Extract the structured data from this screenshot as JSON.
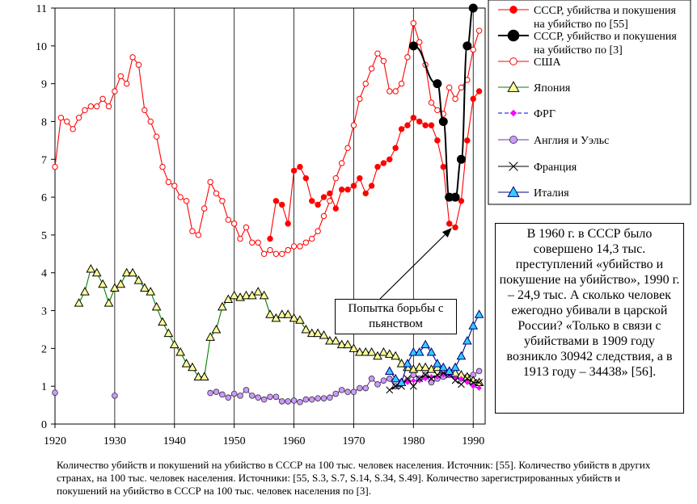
{
  "chart_data": {
    "type": "line",
    "xlim": [
      1920,
      1992
    ],
    "ylim": [
      0,
      11
    ],
    "xticks": [
      1920,
      1930,
      1940,
      1950,
      1960,
      1970,
      1980,
      1990
    ],
    "yticks": [
      0,
      1,
      2,
      3,
      4,
      5,
      6,
      7,
      8,
      9,
      10,
      11
    ],
    "grid": "vertical",
    "legend_position": "top-right",
    "series": [
      {
        "name": "СССР, убийства и покушения на убийство по [55]",
        "color": "#ff0000",
        "marker": "filled-circle",
        "x": [
          1956,
          1957,
          1958,
          1959,
          1960,
          1961,
          1962,
          1963,
          1964,
          1965,
          1966,
          1967,
          1968,
          1969,
          1970,
          1971,
          1972,
          1973,
          1974,
          1975,
          1976,
          1977,
          1978,
          1979,
          1980,
          1981,
          1982,
          1983,
          1984,
          1985,
          1986,
          1987,
          1988,
          1989,
          1990,
          1991
        ],
        "y": [
          4.9,
          5.9,
          5.8,
          5.3,
          6.7,
          6.8,
          6.5,
          5.9,
          5.8,
          6.0,
          6.1,
          5.7,
          6.2,
          6.2,
          6.3,
          6.5,
          6.1,
          6.3,
          6.8,
          6.9,
          7.0,
          7.3,
          7.8,
          7.9,
          8.1,
          8.0,
          7.9,
          7.9,
          7.5,
          6.8,
          5.3,
          5.2,
          5.9,
          7.5,
          8.6,
          8.8
        ]
      },
      {
        "name": "СССР, убийство и покушения на убийство по [3]",
        "color": "#000000",
        "marker": "filled-circle-large",
        "x": [
          1980,
          1984,
          1985,
          1986,
          1987,
          1988,
          1989,
          1990
        ],
        "y": [
          10.0,
          9.0,
          8.0,
          6.0,
          6.0,
          7.0,
          10.0,
          11.0
        ]
      },
      {
        "name": "США",
        "color": "#ff0000",
        "marker": "open-circle",
        "x": [
          1920,
          1921,
          1922,
          1923,
          1924,
          1925,
          1926,
          1927,
          1928,
          1929,
          1930,
          1931,
          1932,
          1933,
          1934,
          1935,
          1936,
          1937,
          1938,
          1939,
          1940,
          1941,
          1942,
          1943,
          1944,
          1945,
          1946,
          1947,
          1948,
          1949,
          1950,
          1951,
          1952,
          1953,
          1954,
          1955,
          1956,
          1957,
          1958,
          1959,
          1960,
          1961,
          1962,
          1963,
          1964,
          1965,
          1966,
          1967,
          1968,
          1969,
          1970,
          1971,
          1972,
          1973,
          1974,
          1975,
          1976,
          1977,
          1978,
          1979,
          1980,
          1981,
          1982,
          1983,
          1984,
          1985,
          1986,
          1987,
          1988,
          1989,
          1990,
          1991
        ],
        "y": [
          6.8,
          8.1,
          8.0,
          7.8,
          8.1,
          8.3,
          8.4,
          8.4,
          8.6,
          8.4,
          8.8,
          9.2,
          9.0,
          9.7,
          9.5,
          8.3,
          8.0,
          7.6,
          6.8,
          6.4,
          6.3,
          6.0,
          5.9,
          5.1,
          5.0,
          5.7,
          6.4,
          6.1,
          5.9,
          5.4,
          5.3,
          4.9,
          5.2,
          4.8,
          4.8,
          4.5,
          4.6,
          4.5,
          4.5,
          4.6,
          4.7,
          4.7,
          4.8,
          4.9,
          5.1,
          5.5,
          5.9,
          6.5,
          6.9,
          7.3,
          7.9,
          8.6,
          9.0,
          9.4,
          9.8,
          9.6,
          8.8,
          8.8,
          9.0,
          9.7,
          10.6,
          10.1,
          9.5,
          8.5,
          8.3,
          8.2,
          8.9,
          8.6,
          8.9,
          9.1,
          9.9,
          10.4
        ]
      },
      {
        "name": "Япония",
        "color": "#008000",
        "marker": "open-triangle-yellow",
        "x": [
          1924,
          1925,
          1926,
          1927,
          1928,
          1929,
          1930,
          1931,
          1932,
          1933,
          1934,
          1935,
          1936,
          1937,
          1938,
          1939,
          1940,
          1941,
          1942,
          1943,
          1944,
          1945,
          1946,
          1947,
          1948,
          1949,
          1950,
          1951,
          1952,
          1953,
          1954,
          1955,
          1956,
          1957,
          1958,
          1959,
          1960,
          1961,
          1962,
          1963,
          1964,
          1965,
          1966,
          1967,
          1968,
          1969,
          1970,
          1971,
          1972,
          1973,
          1974,
          1975,
          1976,
          1977,
          1978,
          1979,
          1980,
          1981,
          1982,
          1983,
          1984,
          1985,
          1986,
          1987,
          1988,
          1989,
          1990,
          1991
        ],
        "y": [
          3.2,
          3.5,
          4.1,
          4.0,
          3.7,
          3.2,
          3.6,
          3.7,
          4.0,
          4.0,
          3.8,
          3.6,
          3.5,
          3.1,
          2.7,
          2.4,
          2.1,
          1.9,
          1.6,
          1.5,
          1.25,
          1.25,
          2.3,
          2.5,
          3.1,
          3.3,
          3.4,
          3.35,
          3.4,
          3.4,
          3.5,
          3.4,
          2.9,
          2.8,
          2.9,
          2.9,
          2.8,
          2.75,
          2.5,
          2.4,
          2.4,
          2.35,
          2.2,
          2.2,
          2.1,
          2.1,
          2.0,
          1.9,
          1.9,
          1.9,
          1.8,
          1.9,
          1.85,
          1.8,
          1.6,
          1.5,
          1.45,
          1.5,
          1.5,
          1.45,
          1.5,
          1.45,
          1.4,
          1.35,
          1.3,
          1.25,
          1.15,
          1.1
        ]
      },
      {
        "name": "ФРГ",
        "color": "#0000ff",
        "dash": true,
        "marker": "magenta-diamond",
        "x": [
          1977,
          1978,
          1979,
          1980,
          1981,
          1982,
          1983,
          1984,
          1985,
          1986,
          1987,
          1988,
          1989,
          1990,
          1991
        ],
        "y": [
          1.2,
          1.15,
          1.1,
          1.15,
          1.15,
          1.2,
          1.25,
          1.25,
          1.3,
          1.3,
          1.2,
          1.2,
          1.1,
          1.0,
          0.95
        ]
      },
      {
        "name": "Англия и Уэльс",
        "color": "#7030a0",
        "marker": "violet-circle",
        "x": [
          1920,
          1930,
          1946,
          1947,
          1948,
          1949,
          1950,
          1951,
          1952,
          1953,
          1954,
          1955,
          1956,
          1957,
          1958,
          1959,
          1960,
          1961,
          1962,
          1963,
          1964,
          1965,
          1966,
          1967,
          1968,
          1969,
          1970,
          1971,
          1972,
          1973,
          1974,
          1975,
          1976,
          1977,
          1978,
          1979,
          1980,
          1981,
          1982,
          1983,
          1984,
          1985,
          1986,
          1987,
          1988,
          1989,
          1990,
          1991
        ],
        "y": [
          0.83,
          0.75,
          0.82,
          0.85,
          0.78,
          0.7,
          0.8,
          0.75,
          0.9,
          0.75,
          0.7,
          0.65,
          0.72,
          0.72,
          0.6,
          0.6,
          0.62,
          0.58,
          0.65,
          0.65,
          0.68,
          0.68,
          0.7,
          0.8,
          0.9,
          0.85,
          0.85,
          0.95,
          0.95,
          1.2,
          1.05,
          1.15,
          1.2,
          1.0,
          1.1,
          1.15,
          1.3,
          1.2,
          1.3,
          1.1,
          1.2,
          1.25,
          1.3,
          1.25,
          1.2,
          1.25,
          1.3,
          1.4
        ]
      },
      {
        "name": "Франция",
        "color": "#000000",
        "marker": "x",
        "x": [
          1976,
          1977,
          1978,
          1979,
          1980,
          1981,
          1982,
          1983,
          1984,
          1985,
          1986,
          1987,
          1988,
          1989,
          1990,
          1991
        ],
        "y": [
          0.9,
          1.0,
          1.0,
          1.2,
          1.0,
          1.2,
          1.3,
          1.2,
          1.3,
          1.35,
          1.3,
          1.15,
          1.05,
          1.2,
          1.1,
          1.1
        ]
      },
      {
        "name": "Италия",
        "color": "#000080",
        "marker": "cyan-triangle",
        "x": [
          1976,
          1977,
          1978,
          1979,
          1980,
          1981,
          1982,
          1983,
          1984,
          1985,
          1986,
          1987,
          1988,
          1989,
          1990,
          1991
        ],
        "y": [
          1.4,
          1.2,
          1.1,
          1.6,
          1.9,
          1.9,
          2.1,
          1.9,
          1.6,
          1.5,
          1.4,
          1.5,
          1.8,
          2.2,
          2.6,
          2.9
        ]
      }
    ]
  },
  "annotation": {
    "note": "В 1960 г. в СССР было совершено 14,3 тыс. преступлений «убийство и покушение на убийство», 1990 г. – 24,9 тыс. А сколько человек ежегодно убивали в царской России? «Только в связи с убийствами в 1909 году возникло 30942 следствия, а в 1913 году – 34438» [56].",
    "callout": "Попытка борьбы с пьянством"
  },
  "caption": "Количество убийств и покушений на убийство в СССР на 100 тыс. человек населения. Источник: [55]. Количество убийств в других странах, на 100 тыс. человек населения. Источники: [55, S.3, S.7, S.14, S.34, S.49]. Количество зарегистрированных убийств и покушений на убийство в СССР на 100 тыс. человек населения по [3]."
}
